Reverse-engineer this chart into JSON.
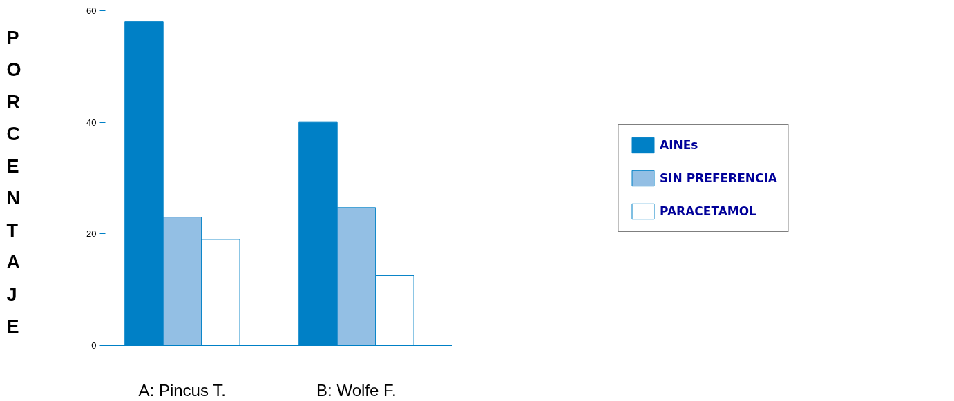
{
  "chart_data": {
    "type": "bar",
    "ylabel": "PORCENTAJE",
    "categories": [
      "A: Pincus T.",
      "B: Wolfe F."
    ],
    "series": [
      {
        "name": "AINEs",
        "color": "#0080c6",
        "values": [
          58,
          40
        ]
      },
      {
        "name": "SIN PREFERENCIA",
        "color": "#93bfe4",
        "values": [
          23,
          24.7
        ]
      },
      {
        "name": "PARACETAMOL",
        "color": "#ffffff",
        "values": [
          19,
          12.5
        ]
      }
    ],
    "ylim": [
      0,
      60
    ],
    "yticks": [
      0,
      20,
      40,
      60
    ],
    "grid": false,
    "legend": "right"
  }
}
